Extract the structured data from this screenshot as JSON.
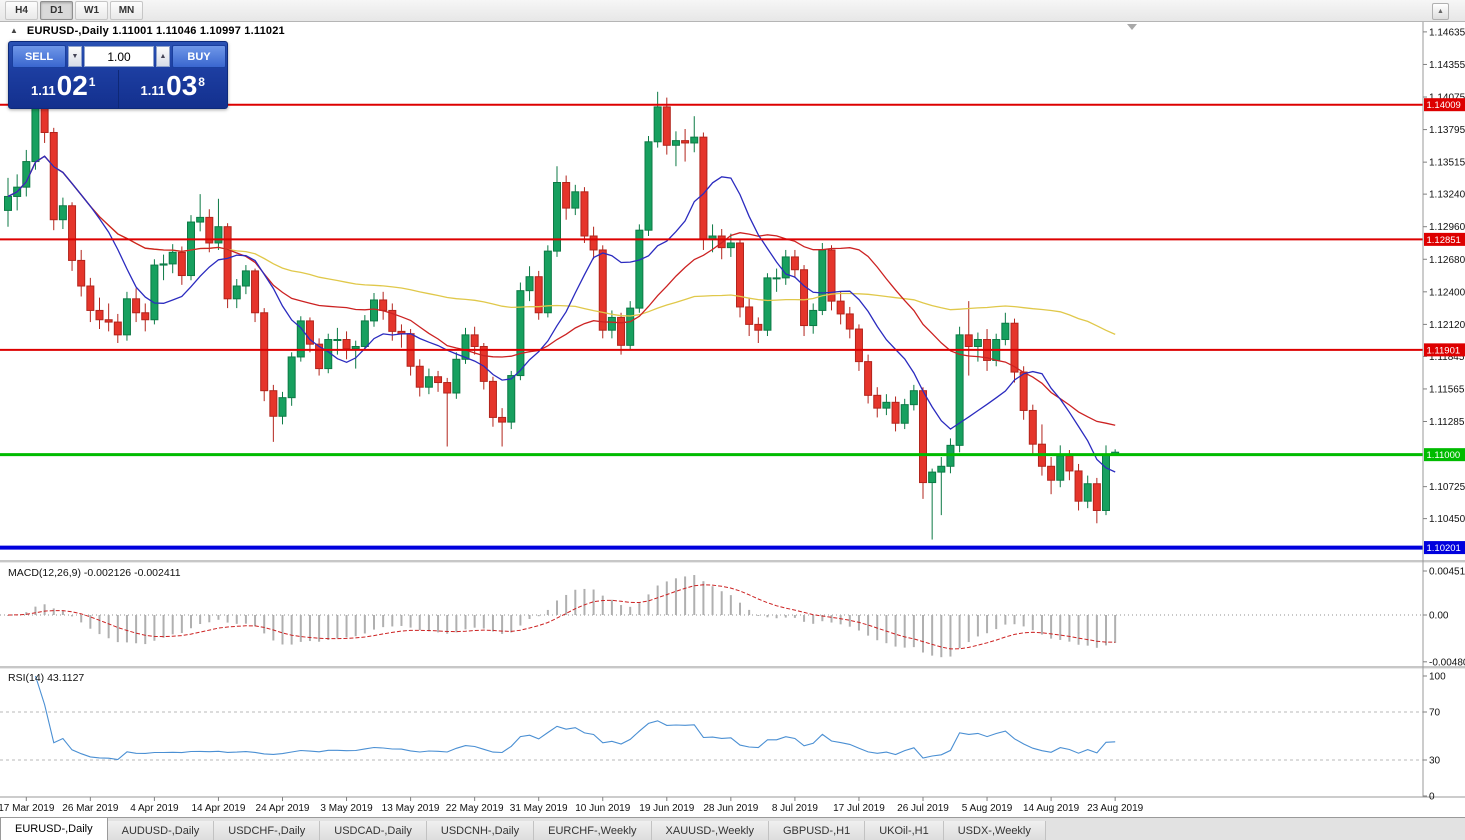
{
  "toolbar": {
    "timeframes": [
      {
        "label": "H4",
        "active": false
      },
      {
        "label": "D1",
        "active": true
      },
      {
        "label": "W1",
        "active": false
      },
      {
        "label": "MN",
        "active": false
      }
    ]
  },
  "icons": {
    "collapse": "▲",
    "volume_down": "▼",
    "volume_up": "▲",
    "toolbar_corner": "▲"
  },
  "chart": {
    "header": "EURUSD-,Daily  1.11001 1.11046 1.10997 1.11021",
    "one_click": {
      "sell_label": "SELL",
      "buy_label": "BUY",
      "volume": "1.00",
      "sell_price": {
        "prefix": "1.11",
        "big": "02",
        "sup": "1"
      },
      "buy_price": {
        "prefix": "1.11",
        "big": "03",
        "sup": "8"
      }
    }
  },
  "chart_data": {
    "type": "candlestick",
    "symbol": "EURUSD-",
    "timeframe": "Daily",
    "current_bar": {
      "open": 1.11001,
      "high": 1.11046,
      "low": 1.10997,
      "close": 1.11021
    },
    "price_range": {
      "top": 1.1472,
      "bottom": 1.1012
    },
    "price_axis_ticks": [
      "1.14635",
      "1.14355",
      "1.14075",
      "1.13795",
      "1.13515",
      "1.13240",
      "1.12960",
      "1.12680",
      "1.12400",
      "1.12120",
      "1.11845",
      "1.11565",
      "1.11285",
      "1.10725",
      "1.10450"
    ],
    "levels": [
      {
        "price": 1.14009,
        "label": "1.14009",
        "color": "#dd0000",
        "width": 2
      },
      {
        "price": 1.12851,
        "label": "1.12851",
        "color": "#dd0000",
        "width": 2
      },
      {
        "price": 1.11901,
        "label": "1.11901",
        "color": "#dd0000",
        "width": 2
      },
      {
        "price": 1.11,
        "label": "1.11000",
        "color": "#00bb00",
        "width": 3
      },
      {
        "price": 1.10201,
        "label": "1.10201",
        "color": "#0000dd",
        "width": 4
      }
    ],
    "x_labels": [
      {
        "index": 2,
        "label": "17 Mar 2019"
      },
      {
        "index": 9,
        "label": "26 Mar 2019"
      },
      {
        "index": 16,
        "label": "4 Apr 2019"
      },
      {
        "index": 23,
        "label": "14 Apr 2019"
      },
      {
        "index": 30,
        "label": "24 Apr 2019"
      },
      {
        "index": 37,
        "label": "3 May 2019"
      },
      {
        "index": 44,
        "label": "13 May 2019"
      },
      {
        "index": 51,
        "label": "22 May 2019"
      },
      {
        "index": 58,
        "label": "31 May 2019"
      },
      {
        "index": 65,
        "label": "10 Jun 2019"
      },
      {
        "index": 72,
        "label": "19 Jun 2019"
      },
      {
        "index": 79,
        "label": "28 Jun 2019"
      },
      {
        "index": 86,
        "label": "8 Jul 2019"
      },
      {
        "index": 93,
        "label": "17 Jul 2019"
      },
      {
        "index": 100,
        "label": "26 Jul 2019"
      },
      {
        "index": 107,
        "label": "5 Aug 2019"
      },
      {
        "index": 114,
        "label": "14 Aug 2019"
      },
      {
        "index": 121,
        "label": "23 Aug 2019"
      }
    ],
    "ohlc": [
      [
        1.131,
        1.1338,
        1.1296,
        1.1322
      ],
      [
        1.1322,
        1.1341,
        1.131,
        1.133
      ],
      [
        1.133,
        1.1362,
        1.1322,
        1.1352
      ],
      [
        1.1352,
        1.1409,
        1.1345,
        1.1402
      ],
      [
        1.1402,
        1.1407,
        1.1368,
        1.1377
      ],
      [
        1.1377,
        1.1381,
        1.1293,
        1.1302
      ],
      [
        1.1302,
        1.1321,
        1.1294,
        1.1314
      ],
      [
        1.1314,
        1.1317,
        1.1258,
        1.1267
      ],
      [
        1.1267,
        1.1276,
        1.1236,
        1.1245
      ],
      [
        1.1245,
        1.1252,
        1.1214,
        1.1224
      ],
      [
        1.1224,
        1.1235,
        1.1208,
        1.1216
      ],
      [
        1.1216,
        1.123,
        1.1206,
        1.1214
      ],
      [
        1.1214,
        1.1221,
        1.1196,
        1.1203
      ],
      [
        1.1203,
        1.124,
        1.1198,
        1.1234
      ],
      [
        1.1234,
        1.1243,
        1.1214,
        1.1222
      ],
      [
        1.1222,
        1.123,
        1.1206,
        1.1216
      ],
      [
        1.1216,
        1.1268,
        1.1212,
        1.1263
      ],
      [
        1.1263,
        1.1272,
        1.125,
        1.1264
      ],
      [
        1.1264,
        1.1281,
        1.1256,
        1.1274
      ],
      [
        1.1274,
        1.1279,
        1.1246,
        1.1254
      ],
      [
        1.1254,
        1.1306,
        1.125,
        1.13
      ],
      [
        1.13,
        1.1324,
        1.1292,
        1.1304
      ],
      [
        1.1304,
        1.1311,
        1.1274,
        1.1282
      ],
      [
        1.1282,
        1.132,
        1.1276,
        1.1296
      ],
      [
        1.1296,
        1.1299,
        1.1226,
        1.1234
      ],
      [
        1.1234,
        1.1251,
        1.1226,
        1.1245
      ],
      [
        1.1245,
        1.1263,
        1.1238,
        1.1258
      ],
      [
        1.1258,
        1.126,
        1.1214,
        1.1222
      ],
      [
        1.1222,
        1.1226,
        1.1146,
        1.1155
      ],
      [
        1.1155,
        1.116,
        1.1111,
        1.1133
      ],
      [
        1.1133,
        1.1154,
        1.1126,
        1.1149
      ],
      [
        1.1149,
        1.1188,
        1.1142,
        1.1184
      ],
      [
        1.1184,
        1.1219,
        1.118,
        1.1215
      ],
      [
        1.1215,
        1.1218,
        1.1188,
        1.1195
      ],
      [
        1.1195,
        1.12,
        1.1168,
        1.1174
      ],
      [
        1.1174,
        1.1204,
        1.117,
        1.1199
      ],
      [
        1.1199,
        1.1209,
        1.1186,
        1.1199
      ],
      [
        1.1199,
        1.1206,
        1.1182,
        1.1191
      ],
      [
        1.1191,
        1.1198,
        1.1174,
        1.1193
      ],
      [
        1.1193,
        1.122,
        1.119,
        1.1215
      ],
      [
        1.1215,
        1.1239,
        1.121,
        1.1233
      ],
      [
        1.1233,
        1.124,
        1.1216,
        1.1224
      ],
      [
        1.1224,
        1.123,
        1.1198,
        1.1206
      ],
      [
        1.1206,
        1.1212,
        1.1192,
        1.1204
      ],
      [
        1.1204,
        1.1208,
        1.1168,
        1.1176
      ],
      [
        1.1176,
        1.1182,
        1.115,
        1.1158
      ],
      [
        1.1158,
        1.1174,
        1.1152,
        1.1167
      ],
      [
        1.1167,
        1.1172,
        1.1154,
        1.1162
      ],
      [
        1.1162,
        1.1166,
        1.1107,
        1.1153
      ],
      [
        1.1153,
        1.1188,
        1.1148,
        1.1182
      ],
      [
        1.1182,
        1.1209,
        1.1178,
        1.1203
      ],
      [
        1.1203,
        1.121,
        1.1186,
        1.1193
      ],
      [
        1.1193,
        1.1196,
        1.1156,
        1.1163
      ],
      [
        1.1163,
        1.1167,
        1.1124,
        1.1132
      ],
      [
        1.1132,
        1.114,
        1.1107,
        1.1128
      ],
      [
        1.1128,
        1.1172,
        1.1122,
        1.1168
      ],
      [
        1.1168,
        1.1248,
        1.1164,
        1.1241
      ],
      [
        1.1241,
        1.1262,
        1.1232,
        1.1253
      ],
      [
        1.1253,
        1.1258,
        1.1216,
        1.1222
      ],
      [
        1.1222,
        1.128,
        1.1218,
        1.1275
      ],
      [
        1.1275,
        1.1348,
        1.127,
        1.1334
      ],
      [
        1.1334,
        1.134,
        1.1302,
        1.1312
      ],
      [
        1.1312,
        1.1332,
        1.1306,
        1.1326
      ],
      [
        1.1326,
        1.133,
        1.1282,
        1.1288
      ],
      [
        1.1288,
        1.1296,
        1.1268,
        1.1276
      ],
      [
        1.1276,
        1.128,
        1.12,
        1.1207
      ],
      [
        1.1207,
        1.1224,
        1.12,
        1.1218
      ],
      [
        1.1218,
        1.1222,
        1.1186,
        1.1194
      ],
      [
        1.1194,
        1.1232,
        1.119,
        1.1226
      ],
      [
        1.1226,
        1.1298,
        1.1222,
        1.1293
      ],
      [
        1.1293,
        1.1374,
        1.1288,
        1.1369
      ],
      [
        1.1369,
        1.1412,
        1.1364,
        1.1399
      ],
      [
        1.1399,
        1.1407,
        1.1358,
        1.1366
      ],
      [
        1.1366,
        1.1378,
        1.1348,
        1.137
      ],
      [
        1.137,
        1.138,
        1.1352,
        1.1368
      ],
      [
        1.1368,
        1.1391,
        1.136,
        1.1373
      ],
      [
        1.1373,
        1.1377,
        1.1276,
        1.1285
      ],
      [
        1.1285,
        1.1298,
        1.1274,
        1.1288
      ],
      [
        1.1288,
        1.1294,
        1.1268,
        1.1278
      ],
      [
        1.1278,
        1.129,
        1.127,
        1.1282
      ],
      [
        1.1282,
        1.1285,
        1.1218,
        1.1227
      ],
      [
        1.1227,
        1.1235,
        1.1202,
        1.1212
      ],
      [
        1.1212,
        1.1218,
        1.1196,
        1.1207
      ],
      [
        1.1207,
        1.1256,
        1.1202,
        1.1252
      ],
      [
        1.1252,
        1.126,
        1.124,
        1.1252
      ],
      [
        1.1252,
        1.1276,
        1.1246,
        1.127
      ],
      [
        1.127,
        1.1276,
        1.1252,
        1.1259
      ],
      [
        1.1259,
        1.1263,
        1.1202,
        1.1211
      ],
      [
        1.1211,
        1.123,
        1.1204,
        1.1224
      ],
      [
        1.1224,
        1.1282,
        1.122,
        1.1276
      ],
      [
        1.1276,
        1.128,
        1.1224,
        1.1232
      ],
      [
        1.1232,
        1.124,
        1.1212,
        1.1221
      ],
      [
        1.1221,
        1.1227,
        1.12,
        1.1208
      ],
      [
        1.1208,
        1.1212,
        1.1172,
        1.118
      ],
      [
        1.118,
        1.1186,
        1.1144,
        1.1151
      ],
      [
        1.1151,
        1.1158,
        1.1132,
        1.114
      ],
      [
        1.114,
        1.1152,
        1.1134,
        1.1145
      ],
      [
        1.1145,
        1.115,
        1.112,
        1.1127
      ],
      [
        1.1127,
        1.1148,
        1.1122,
        1.1143
      ],
      [
        1.1143,
        1.116,
        1.1138,
        1.1155
      ],
      [
        1.1155,
        1.1158,
        1.1062,
        1.1076
      ],
      [
        1.1076,
        1.1088,
        1.1027,
        1.1085
      ],
      [
        1.1085,
        1.1098,
        1.1048,
        1.109
      ],
      [
        1.109,
        1.1114,
        1.1084,
        1.1108
      ],
      [
        1.1108,
        1.121,
        1.1102,
        1.1203
      ],
      [
        1.1203,
        1.1232,
        1.1168,
        1.1193
      ],
      [
        1.1193,
        1.1205,
        1.118,
        1.1199
      ],
      [
        1.1199,
        1.1208,
        1.1172,
        1.1181
      ],
      [
        1.1181,
        1.1204,
        1.1176,
        1.1199
      ],
      [
        1.1199,
        1.1222,
        1.1194,
        1.1213
      ],
      [
        1.1213,
        1.1217,
        1.1162,
        1.1171
      ],
      [
        1.1171,
        1.1176,
        1.113,
        1.1138
      ],
      [
        1.1138,
        1.1143,
        1.11,
        1.1109
      ],
      [
        1.1109,
        1.1126,
        1.1082,
        1.109
      ],
      [
        1.109,
        1.1098,
        1.1066,
        1.1078
      ],
      [
        1.1078,
        1.1108,
        1.1072,
        1.1099
      ],
      [
        1.1099,
        1.1104,
        1.1078,
        1.1086
      ],
      [
        1.1086,
        1.1092,
        1.1052,
        1.106
      ],
      [
        1.106,
        1.1082,
        1.1054,
        1.1075
      ],
      [
        1.1075,
        1.108,
        1.1041,
        1.1052
      ],
      [
        1.1052,
        1.1108,
        1.1048,
        1.11
      ],
      [
        1.11001,
        1.11046,
        1.10997,
        1.11021
      ]
    ],
    "moving_averages": [
      {
        "period": 10,
        "color_key": "ma_fast"
      },
      {
        "period": 25,
        "color_key": "ma_mid"
      },
      {
        "period": 60,
        "color_key": "ma_slow"
      }
    ],
    "macd": {
      "label": "MACD(12,26,9) -0.002126 -0.002411",
      "fast": 12,
      "slow": 26,
      "signal": 9,
      "axis": [
        {
          "value": 0.004517,
          "label": "0.004517"
        },
        {
          "value": 0,
          "label": "0.00"
        },
        {
          "value": -0.004806,
          "label": "-0.004806"
        }
      ]
    },
    "rsi": {
      "label": "RSI(14) 43.1127",
      "period": 14,
      "axis": [
        {
          "value": 100,
          "label": "100"
        },
        {
          "value": 70,
          "label": "70"
        },
        {
          "value": 30,
          "label": "30"
        },
        {
          "value": 0,
          "label": "0"
        }
      ],
      "levels": [
        70,
        30
      ]
    }
  },
  "tabs": [
    {
      "label": "EURUSD-,Daily",
      "active": true
    },
    {
      "label": "AUDUSD-,Daily",
      "active": false
    },
    {
      "label": "USDCHF-,Daily",
      "active": false
    },
    {
      "label": "USDCAD-,Daily",
      "active": false
    },
    {
      "label": "USDCNH-,Daily",
      "active": false
    },
    {
      "label": "EURCHF-,Weekly",
      "active": false
    },
    {
      "label": "XAUUSD-,Weekly",
      "active": false
    },
    {
      "label": "GBPUSD-,H1",
      "active": false
    },
    {
      "label": "UKOil-,H1",
      "active": false
    },
    {
      "label": "USDX-,Weekly",
      "active": false
    }
  ],
  "colors": {
    "bull": "#17a05f",
    "bull_border": "#0c7a45",
    "bear": "#e5352b",
    "bear_border": "#b2241c",
    "ma_fast": "#2b2bbf",
    "ma_mid": "#cc2222",
    "ma_slow": "#e0c84a",
    "level_red": "#dd0000",
    "level_green": "#00bb00",
    "level_blue": "#0000dd",
    "macd_hist": "#b0b0b0",
    "macd_signal": "#cc2222",
    "rsi_line": "#4a8fd3",
    "axis_line": "#9a9a9a",
    "text": "#111111"
  }
}
